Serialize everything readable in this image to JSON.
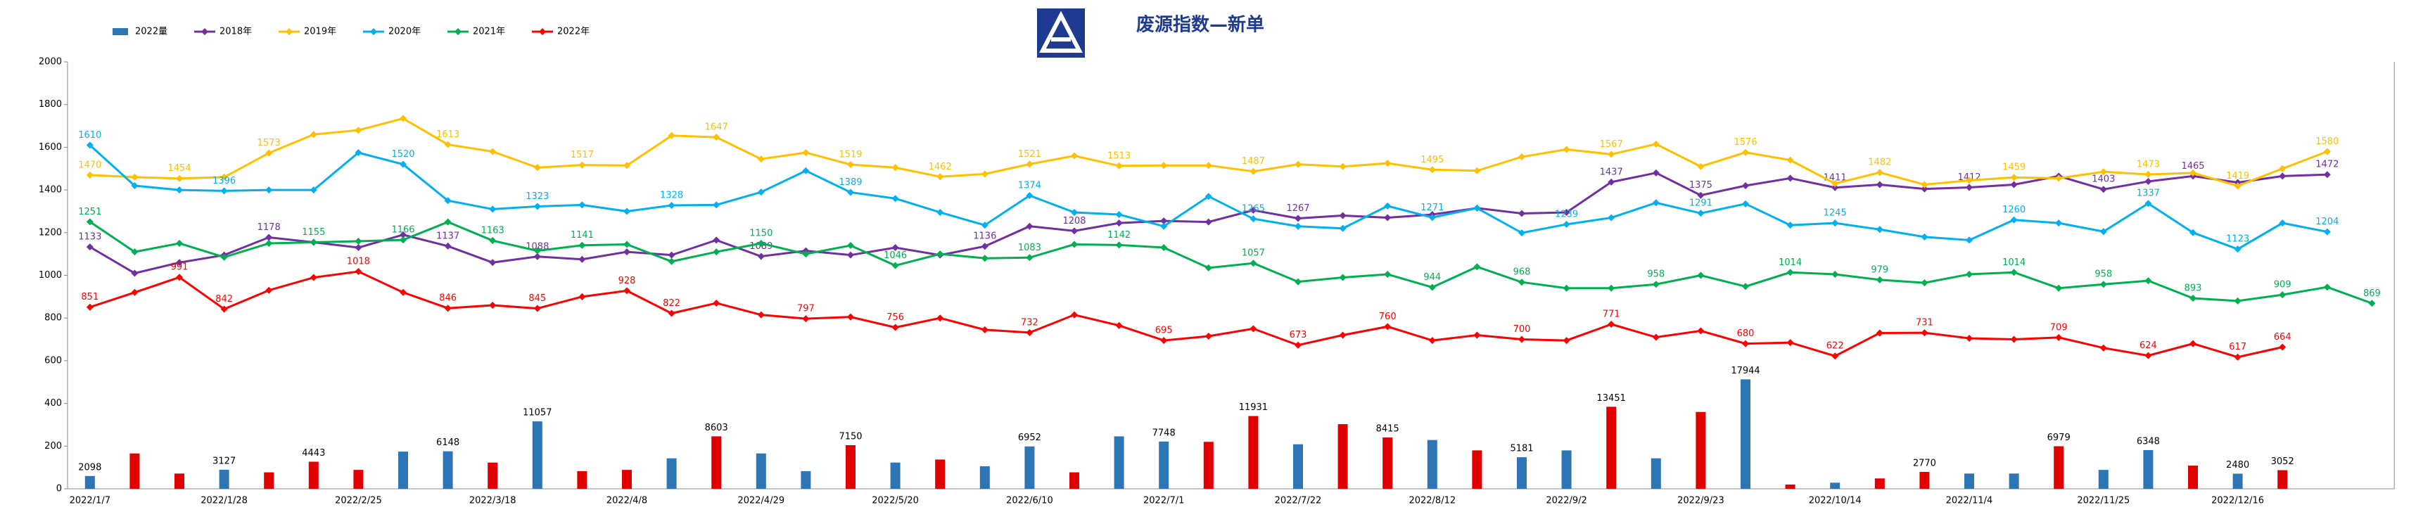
{
  "chart_data": {
    "type": "bar-line",
    "title": "废源指数—新单",
    "categories": [
      "2022/1/7",
      null,
      null,
      "2022/1/28",
      null,
      null,
      "2022/2/25",
      null,
      null,
      "2022/3/18",
      null,
      null,
      "2022/4/8",
      null,
      null,
      "2022/4/29",
      null,
      null,
      "2022/5/20",
      null,
      null,
      "2022/6/10",
      null,
      null,
      "2022/7/1",
      null,
      null,
      "2022/7/22",
      null,
      null,
      "2022/8/12",
      null,
      null,
      "2022/9/2",
      null,
      null,
      "2022/9/23",
      null,
      null,
      "2022/10/14",
      null,
      null,
      "2022/11/4",
      null,
      null,
      "2022/11/25",
      null,
      null,
      "2022/12/16",
      null,
      null,
      null
    ],
    "ylim": [
      0,
      2000
    ],
    "yticks": [
      0,
      200,
      400,
      600,
      800,
      1000,
      1200,
      1400,
      1600,
      1800,
      2000
    ],
    "y2lim": [
      0,
      70000
    ],
    "grid": false,
    "series": [
      {
        "name": "2022量",
        "type": "bar",
        "axis": "y2",
        "color": "#2e75b6",
        "values": [
          2098,
          5800,
          2500,
          3127,
          2700,
          4443,
          3100,
          6100,
          6148,
          4300,
          11057,
          2900,
          3100,
          5000,
          8603,
          5800,
          2900,
          7150,
          4300,
          4800,
          3700,
          6952,
          2700,
          8600,
          7748,
          7700,
          11931,
          7300,
          10600,
          8415,
          8000,
          6300,
          5181,
          6300,
          13451,
          5000,
          12600,
          17944,
          700,
          1000,
          1700,
          2770,
          2500,
          2500,
          6979,
          3100,
          6348,
          3800,
          2480,
          3052,
          null,
          null
        ],
        "colors": [
          "#2e75b6",
          "#e00000",
          "#e00000",
          "#2e75b6",
          "#e00000",
          "#e00000",
          "#e00000",
          "#2e75b6",
          "#2e75b6",
          "#e00000",
          "#2e75b6",
          "#e00000",
          "#e00000",
          "#2e75b6",
          "#e00000",
          "#2e75b6",
          "#2e75b6",
          "#e00000",
          "#2e75b6",
          "#e00000",
          "#2e75b6",
          "#2e75b6",
          "#e00000",
          "#2e75b6",
          "#2e75b6",
          "#e00000",
          "#e00000",
          "#2e75b6",
          "#e00000",
          "#e00000",
          "#2e75b6",
          "#e00000",
          "#2e75b6",
          "#2e75b6",
          "#e00000",
          "#2e75b6",
          "#e00000",
          "#2e75b6",
          "#e00000",
          "#2e75b6",
          "#e00000",
          "#e00000",
          "#2e75b6",
          "#2e75b6",
          "#e00000",
          "#2e75b6",
          "#2e75b6",
          "#e00000",
          "#2e75b6",
          "#e00000",
          null,
          null
        ],
        "value_labels": [
          "2098",
          null,
          null,
          "3127",
          null,
          "4443",
          null,
          null,
          "6148",
          null,
          "11057",
          null,
          null,
          null,
          "8603",
          null,
          null,
          "7150",
          null,
          null,
          null,
          "6952",
          null,
          null,
          "7748",
          null,
          "11931",
          null,
          null,
          "8415",
          null,
          null,
          "5181",
          null,
          "13451",
          null,
          null,
          "17944",
          null,
          null,
          null,
          "2770",
          null,
          null,
          "6979",
          null,
          "6348",
          null,
          "2480",
          "3052",
          null,
          null
        ]
      },
      {
        "name": "2018年",
        "type": "line",
        "color": "#7030a0",
        "values": [
          1133,
          1010,
          1060,
          1095,
          1178,
          1155,
          1130,
          1190,
          1137,
          1060,
          1088,
          1075,
          1110,
          1095,
          1165,
          1089,
          1115,
          1095,
          1130,
          1095,
          1136,
          1230,
          1208,
          1245,
          1255,
          1250,
          1305,
          1267,
          1280,
          1270,
          1285,
          1315,
          1290,
          1295,
          1437,
          1480,
          1375,
          1420,
          1455,
          1411,
          1425,
          1405,
          1412,
          1425,
          1465,
          1403,
          1440,
          1465,
          1435,
          1465,
          1472,
          null
        ],
        "value_labels": [
          "1133",
          null,
          null,
          null,
          "1178",
          null,
          null,
          null,
          "1137",
          null,
          "1088",
          null,
          null,
          null,
          null,
          "1089",
          null,
          null,
          null,
          null,
          "1136",
          null,
          "1208",
          null,
          null,
          null,
          null,
          "1267",
          null,
          null,
          null,
          null,
          null,
          null,
          "1437",
          null,
          "1375",
          null,
          null,
          "1411",
          null,
          null,
          "1412",
          null,
          null,
          "1403",
          null,
          "1465",
          null,
          null,
          "1472",
          null
        ]
      },
      {
        "name": "2019年",
        "type": "line",
        "color": "#ffc000",
        "values": [
          1470,
          1460,
          1454,
          1460,
          1573,
          1660,
          1680,
          1735,
          1613,
          1580,
          1505,
          1517,
          1515,
          1655,
          1647,
          1545,
          1575,
          1519,
          1505,
          1462,
          1475,
          1521,
          1560,
          1513,
          1515,
          1515,
          1487,
          1520,
          1510,
          1525,
          1495,
          1490,
          1555,
          1590,
          1567,
          1615,
          1510,
          1576,
          1540,
          1430,
          1482,
          1425,
          1445,
          1459,
          1455,
          1485,
          1473,
          1480,
          1419,
          1500,
          1580,
          null
        ],
        "value_labels": [
          "1470",
          null,
          "1454",
          null,
          "1573",
          null,
          null,
          null,
          "1613",
          null,
          null,
          "1517",
          null,
          null,
          "1647",
          null,
          null,
          "1519",
          null,
          "1462",
          null,
          "1521",
          null,
          "1513",
          null,
          null,
          "1487",
          null,
          null,
          null,
          "1495",
          null,
          null,
          null,
          "1567",
          null,
          null,
          "1576",
          null,
          null,
          "1482",
          null,
          null,
          "1459",
          null,
          null,
          "1473",
          null,
          "1419",
          null,
          "1580",
          null
        ]
      },
      {
        "name": "2020年",
        "type": "line",
        "color": "#00b0f0",
        "values": [
          1610,
          1420,
          1400,
          1396,
          1400,
          1400,
          1575,
          1520,
          1350,
          1310,
          1323,
          1330,
          1300,
          1328,
          1330,
          1390,
          1490,
          1389,
          1360,
          1295,
          1235,
          1374,
          1295,
          1285,
          1230,
          1370,
          1265,
          1230,
          1220,
          1325,
          1271,
          1315,
          1199,
          1239,
          1270,
          1340,
          1291,
          1335,
          1235,
          1245,
          1215,
          1180,
          1165,
          1260,
          1245,
          1205,
          1337,
          1200,
          1123,
          1245,
          1204,
          null
        ],
        "value_labels": [
          "1610",
          null,
          null,
          "1396",
          null,
          null,
          null,
          "1520",
          null,
          null,
          "1323",
          null,
          null,
          "1328",
          null,
          null,
          null,
          "1389",
          null,
          null,
          null,
          "1374",
          null,
          null,
          null,
          null,
          "1265",
          null,
          null,
          null,
          "1271",
          null,
          null,
          "1239",
          null,
          null,
          "1291",
          null,
          null,
          "1245",
          null,
          null,
          null,
          "1260",
          null,
          null,
          "1337",
          null,
          "1123",
          null,
          "1204",
          null
        ]
      },
      {
        "name": "2021年",
        "type": "line",
        "color": "#00b050",
        "values": [
          1251,
          1110,
          1150,
          1085,
          1150,
          1155,
          1160,
          1166,
          1250,
          1163,
          1115,
          1141,
          1145,
          1065,
          1110,
          1150,
          1100,
          1140,
          1046,
          1100,
          1080,
          1083,
          1145,
          1142,
          1130,
          1035,
          1057,
          970,
          990,
          1005,
          944,
          1040,
          968,
          940,
          940,
          958,
          1000,
          948,
          1014,
          1005,
          979,
          965,
          1005,
          1014,
          940,
          958,
          975,
          893,
          880,
          909,
          945,
          869
        ],
        "value_labels": [
          "1251",
          null,
          null,
          null,
          null,
          "1155",
          null,
          "1166",
          null,
          "1163",
          null,
          "1141",
          null,
          null,
          null,
          "1150",
          null,
          null,
          "1046",
          null,
          null,
          "1083",
          null,
          "1142",
          null,
          null,
          "1057",
          null,
          null,
          null,
          "944",
          null,
          "968",
          null,
          null,
          "958",
          null,
          null,
          "1014",
          null,
          "979",
          null,
          null,
          "1014",
          null,
          "958",
          null,
          "893",
          null,
          "909",
          null,
          "869"
        ]
      },
      {
        "name": "2022年",
        "type": "line",
        "color": "#ff0000",
        "values": [
          851,
          920,
          991,
          842,
          930,
          990,
          1018,
          920,
          846,
          860,
          845,
          900,
          928,
          822,
          870,
          815,
          797,
          805,
          756,
          800,
          745,
          732,
          815,
          765,
          695,
          715,
          750,
          673,
          720,
          760,
          695,
          720,
          700,
          695,
          771,
          710,
          740,
          680,
          685,
          622,
          730,
          731,
          705,
          700,
          709,
          660,
          624,
          680,
          617,
          664,
          null,
          null
        ],
        "value_labels": [
          "851",
          null,
          "991",
          "842",
          null,
          null,
          "1018",
          null,
          "846",
          null,
          "845",
          null,
          "928",
          "822",
          null,
          null,
          "797",
          null,
          "756",
          null,
          null,
          "732",
          null,
          null,
          "695",
          null,
          null,
          "673",
          null,
          "760",
          null,
          null,
          "700",
          null,
          "771",
          null,
          null,
          "680",
          null,
          "622",
          null,
          "731",
          null,
          null,
          "709",
          null,
          "624",
          null,
          "617",
          "664",
          null,
          null
        ]
      }
    ]
  }
}
